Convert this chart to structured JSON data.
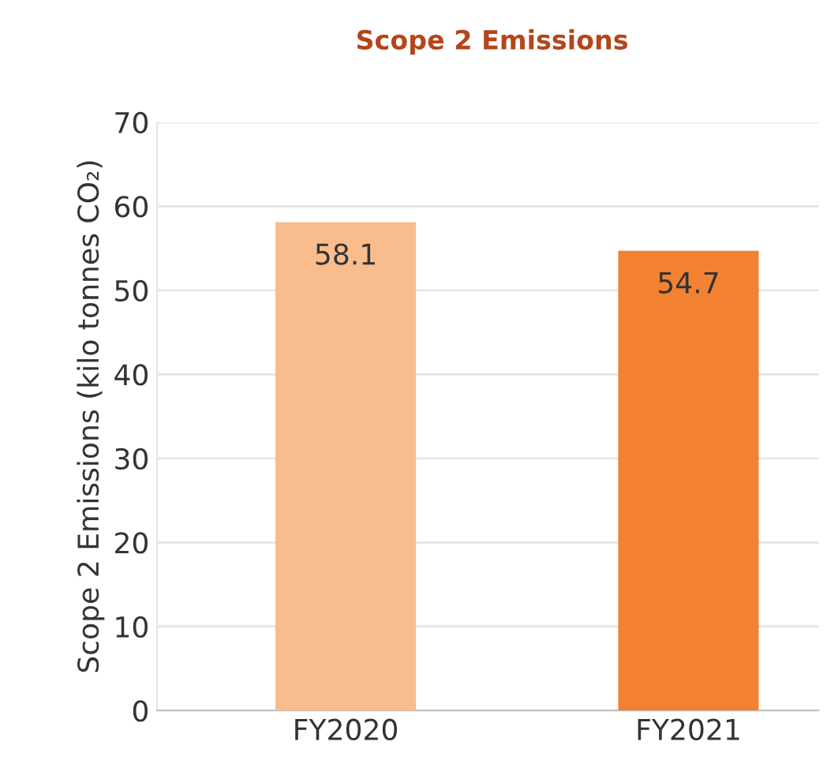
{
  "chart_data": {
    "type": "bar",
    "title": "Scope 2 Emissions",
    "ylabel": "Scope 2 Emissions (kilo tonnes CO₂)",
    "categories": [
      "FY2020",
      "FY2021"
    ],
    "values": [
      58.1,
      54.7
    ],
    "colors": [
      "#f9bc8c",
      "#f28232"
    ],
    "ylim": [
      0,
      70
    ],
    "yticks": [
      0,
      10,
      20,
      30,
      40,
      50,
      60,
      70
    ],
    "grid": "y",
    "data_labels": true
  }
}
